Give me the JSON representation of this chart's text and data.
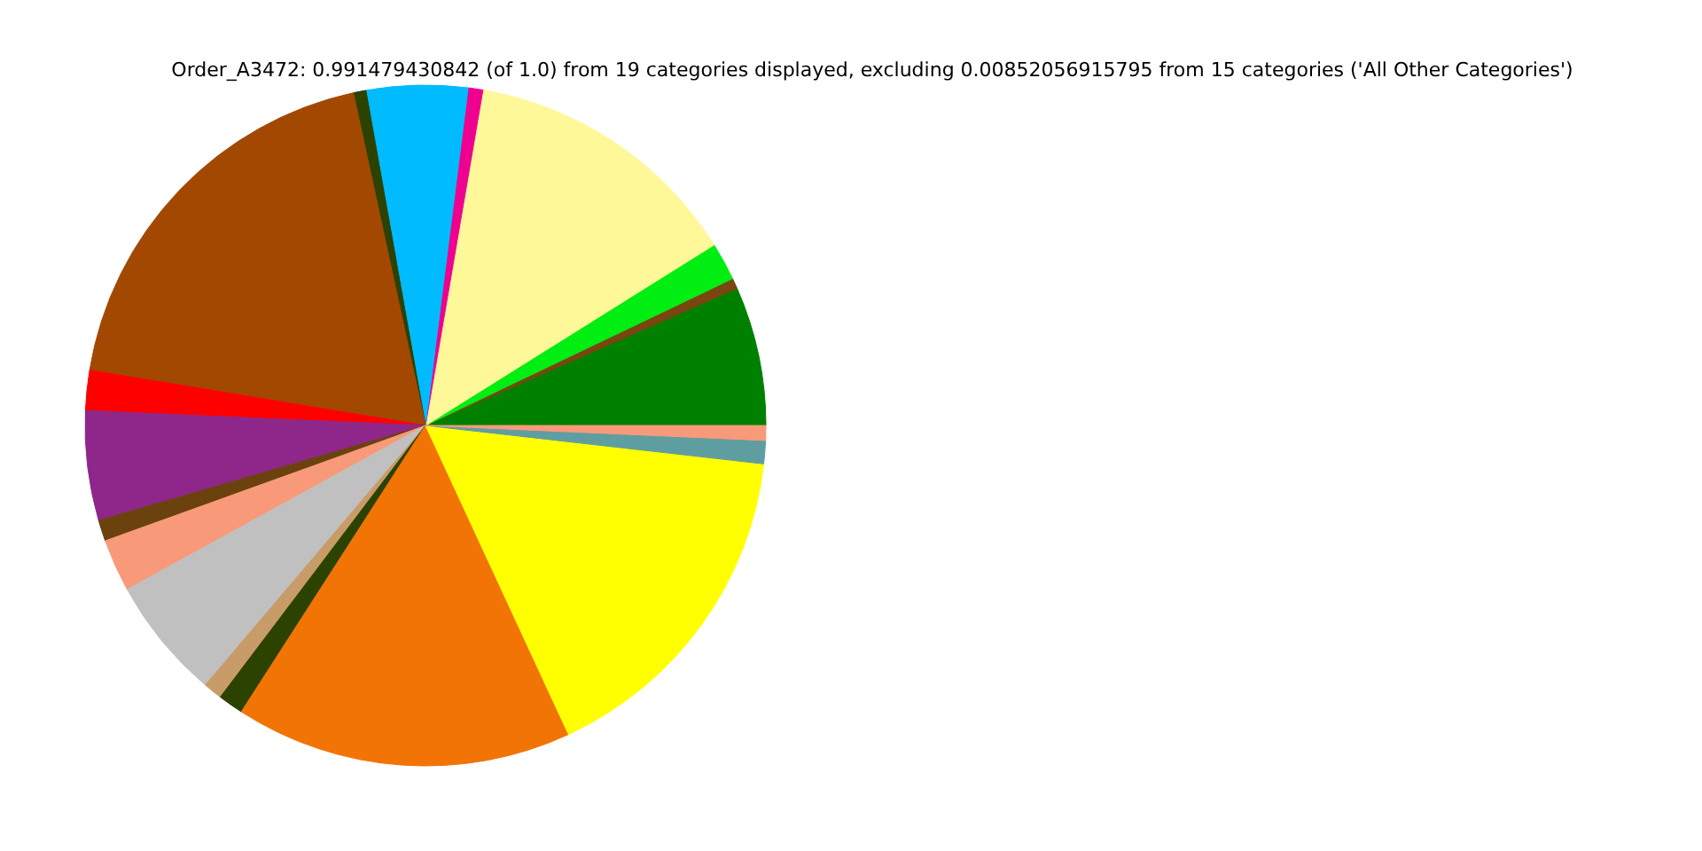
{
  "chart_data": {
    "type": "pie",
    "title": "Order_A3472: 0.991479430842 (of 1.0) from 19 categories displayed, excluding 0.00852056915795 from 15 categories ('All Other Categories')",
    "categories": [
      null,
      null,
      null,
      null,
      null,
      null,
      null,
      null,
      null,
      null,
      null,
      null,
      null,
      null,
      null,
      null,
      null,
      null,
      null
    ],
    "values": [
      6.6,
      0.5,
      1.8,
      13.4,
      0.7,
      4.8,
      0.6,
      19.0,
      1.9,
      5.2,
      1.0,
      2.5,
      5.8,
      0.9,
      1.2,
      16.0,
      16.3,
      1.1,
      0.7
    ],
    "colors": [
      "#008000",
      "#7a4510",
      "#00ee12",
      "#fff899",
      "#ee0090",
      "#00bbff",
      "#2b4200",
      "#a34800",
      "#ff0000",
      "#8f278a",
      "#6b420e",
      "#f89a7a",
      "#c0c0c0",
      "#c89c68",
      "#2b4200",
      "#f27405",
      "#ffff00",
      "#5f9ea0",
      "#f89a7a"
    ]
  }
}
